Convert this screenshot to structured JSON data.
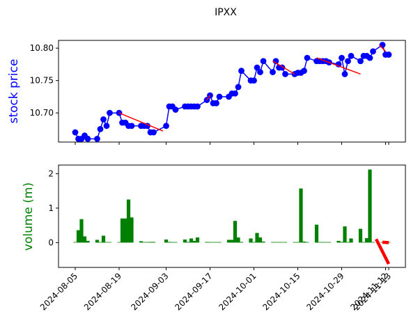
{
  "chart_data": {
    "type": "line",
    "title": "IPXX",
    "colors": {
      "price": "#0000ff",
      "trend": "#ff0000",
      "volume": "#008000"
    },
    "x_ticks": [
      "2024-08-05",
      "2024-08-19",
      "2024-09-03",
      "2024-09-17",
      "2024-10-01",
      "2024-10-15",
      "2024-10-29",
      "2024-11-12",
      "2024-11-13"
    ],
    "price_panel": {
      "ylabel": "stock price",
      "ylim": [
        10.655,
        10.812
      ],
      "yticks": [
        "10.70",
        "10.75",
        "10.80"
      ],
      "ytick_values": [
        10.7,
        10.75,
        10.8
      ],
      "dates": [
        "2024-08-05",
        "2024-08-06",
        "2024-08-07",
        "2024-08-08",
        "2024-08-09",
        "2024-08-12",
        "2024-08-13",
        "2024-08-14",
        "2024-08-15",
        "2024-08-16",
        "2024-08-19",
        "2024-08-20",
        "2024-08-21",
        "2024-08-22",
        "2024-08-23",
        "2024-08-26",
        "2024-08-27",
        "2024-08-28",
        "2024-08-29",
        "2024-08-30",
        "2024-09-03",
        "2024-09-04",
        "2024-09-05",
        "2024-09-06",
        "2024-09-09",
        "2024-09-10",
        "2024-09-11",
        "2024-09-12",
        "2024-09-13",
        "2024-09-16",
        "2024-09-17",
        "2024-09-18",
        "2024-09-19",
        "2024-09-20",
        "2024-09-23",
        "2024-09-24",
        "2024-09-25",
        "2024-09-26",
        "2024-09-27",
        "2024-09-30",
        "2024-10-01",
        "2024-10-02",
        "2024-10-03",
        "2024-10-04",
        "2024-10-07",
        "2024-10-08",
        "2024-10-09",
        "2024-10-10",
        "2024-10-11",
        "2024-10-14",
        "2024-10-15",
        "2024-10-16",
        "2024-10-17",
        "2024-10-18",
        "2024-10-21",
        "2024-10-22",
        "2024-10-23",
        "2024-10-24",
        "2024-10-25",
        "2024-10-28",
        "2024-10-29",
        "2024-10-30",
        "2024-10-31",
        "2024-11-01",
        "2024-11-04",
        "2024-11-05",
        "2024-11-06",
        "2024-11-07",
        "2024-11-08",
        "2024-11-11",
        "2024-11-12",
        "2024-11-13"
      ],
      "values": [
        10.67,
        10.66,
        10.66,
        10.665,
        10.66,
        10.66,
        10.675,
        10.69,
        10.68,
        10.7,
        10.7,
        10.685,
        10.685,
        10.68,
        10.68,
        10.68,
        10.68,
        10.68,
        10.67,
        10.67,
        10.68,
        10.71,
        10.71,
        10.705,
        10.71,
        10.71,
        10.71,
        10.71,
        10.71,
        10.72,
        10.727,
        10.715,
        10.715,
        10.725,
        10.725,
        10.73,
        10.73,
        10.74,
        10.765,
        10.75,
        10.75,
        10.77,
        10.763,
        10.78,
        10.763,
        10.78,
        10.77,
        10.77,
        10.76,
        10.76,
        10.762,
        10.762,
        10.765,
        10.785,
        10.78,
        10.78,
        10.78,
        10.78,
        10.778,
        10.775,
        10.785,
        10.76,
        10.78,
        10.788,
        10.78,
        10.788,
        10.788,
        10.785,
        10.795,
        10.805,
        10.79,
        10.79
      ],
      "trend_segments": [
        {
          "start": [
            "2024-08-19",
            10.7
          ],
          "end": [
            "2024-09-02",
            10.672
          ]
        },
        {
          "start": [
            "2024-09-16",
            10.72
          ],
          "end": [
            "2024-09-17",
            10.727
          ]
        },
        {
          "start": [
            "2024-10-07",
            10.78
          ],
          "end": [
            "2024-10-14",
            10.76
          ]
        },
        {
          "start": [
            "2024-10-21",
            10.785
          ],
          "end": [
            "2024-11-04",
            10.76
          ]
        },
        {
          "start": [
            "2024-11-10",
            10.805
          ],
          "end": [
            "2024-11-12",
            10.795
          ]
        }
      ]
    },
    "volume_panel": {
      "ylabel": "volume (m)",
      "ylim": [
        -0.72,
        2.25
      ],
      "yticks": [
        "0",
        "1",
        "2"
      ],
      "ytick_values": [
        0,
        1,
        2
      ],
      "dates": [
        "2024-08-05",
        "2024-08-06",
        "2024-08-07",
        "2024-08-08",
        "2024-08-09",
        "2024-08-12",
        "2024-08-13",
        "2024-08-14",
        "2024-08-15",
        "2024-08-16",
        "2024-08-19",
        "2024-08-20",
        "2024-08-21",
        "2024-08-22",
        "2024-08-23",
        "2024-08-26",
        "2024-08-27",
        "2024-08-28",
        "2024-08-29",
        "2024-08-30",
        "2024-09-03",
        "2024-09-04",
        "2024-09-05",
        "2024-09-06",
        "2024-09-09",
        "2024-09-10",
        "2024-09-11",
        "2024-09-12",
        "2024-09-13",
        "2024-09-16",
        "2024-09-17",
        "2024-09-18",
        "2024-09-19",
        "2024-09-20",
        "2024-09-23",
        "2024-09-24",
        "2024-09-25",
        "2024-09-26",
        "2024-09-27",
        "2024-09-30",
        "2024-10-01",
        "2024-10-02",
        "2024-10-03",
        "2024-10-04",
        "2024-10-07",
        "2024-10-08",
        "2024-10-09",
        "2024-10-10",
        "2024-10-11",
        "2024-10-14",
        "2024-10-15",
        "2024-10-16",
        "2024-10-17",
        "2024-10-18",
        "2024-10-21",
        "2024-10-22",
        "2024-10-23",
        "2024-10-24",
        "2024-10-25",
        "2024-10-28",
        "2024-10-29",
        "2024-10-30",
        "2024-10-31",
        "2024-11-01",
        "2024-11-04",
        "2024-11-05",
        "2024-11-06",
        "2024-11-07",
        "2024-11-08",
        "2024-11-11",
        "2024-11-12",
        "2024-11-13"
      ],
      "values": [
        0.01,
        0.36,
        0.68,
        0.18,
        0.05,
        0.08,
        0.01,
        0.2,
        0.0,
        0.0,
        0.01,
        0.7,
        0.7,
        1.25,
        0.73,
        0.04,
        0.01,
        0.01,
        0.02,
        0.02,
        0.09,
        0.02,
        0.01,
        0.01,
        0.09,
        0.02,
        0.12,
        0.05,
        0.15,
        0.02,
        0.01,
        0.0,
        0.01,
        0.01,
        0.08,
        0.08,
        0.63,
        0.15,
        0.02,
        0.12,
        0.0,
        0.28,
        0.15,
        0.03,
        0.01,
        0.0,
        0.01,
        0.01,
        0.0,
        0.01,
        0.01,
        1.57,
        0.03,
        0.01,
        0.52,
        0.0,
        0.0,
        0.01,
        0.0,
        0.05,
        0.02,
        0.47,
        0.0,
        0.12,
        0.4,
        0.0,
        0.13,
        2.12,
        0.0,
        0.0,
        0.0,
        0.0
      ],
      "trend_segments": [
        {
          "start": [
            "2024-11-09",
            0.1
          ],
          "end": [
            "2024-11-13",
            -0.62
          ]
        },
        {
          "start": [
            "2024-11-11",
            0.01
          ],
          "end": [
            "2024-11-13",
            0.0
          ]
        }
      ]
    }
  }
}
